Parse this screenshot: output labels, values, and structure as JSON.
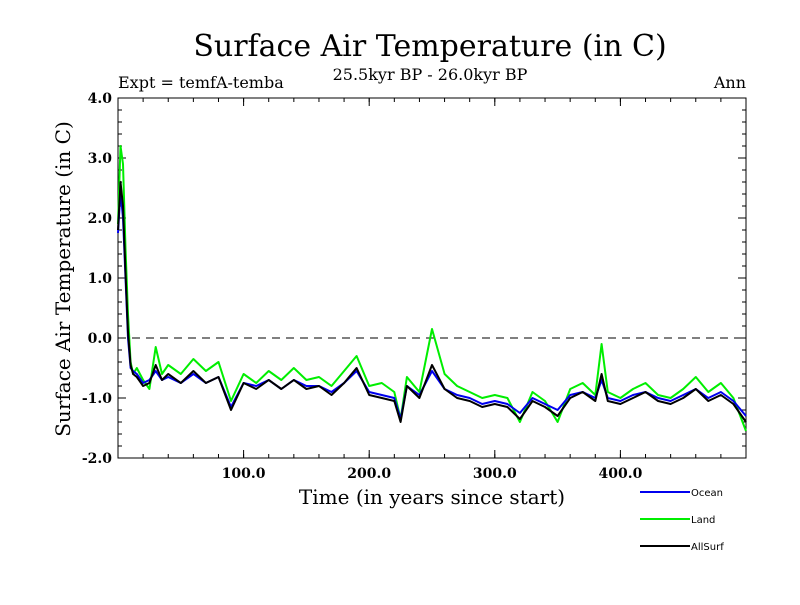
{
  "chart_data": {
    "type": "line",
    "title": "Surface Air Temperature (in C)",
    "subtitle": "25.5kyr BP - 26.0kyr BP",
    "expt_label": "Expt = temfA-temba",
    "season_label": "Ann",
    "xlabel": "Time (in years since start)",
    "ylabel": "Surface Air Temperature (in C)",
    "xlim": [
      0,
      500
    ],
    "ylim": [
      -2.0,
      4.0
    ],
    "xticks": [
      100,
      200,
      300,
      400
    ],
    "xtick_labels": [
      "100.0",
      "200.0",
      "300.0",
      "400.0"
    ],
    "yticks": [
      -2.0,
      -1.0,
      0.0,
      1.0,
      2.0,
      3.0,
      4.0
    ],
    "ytick_labels": [
      "-2.0",
      "-1.0",
      "0.0",
      "1.0",
      "2.0",
      "3.0",
      "4.0"
    ],
    "reference_line": 0.0,
    "series": [
      {
        "name": "Land",
        "color": "#00ee00",
        "x": [
          0,
          2,
          4,
          6,
          8,
          10,
          12,
          15,
          20,
          25,
          30,
          35,
          40,
          50,
          60,
          70,
          80,
          90,
          100,
          110,
          120,
          130,
          140,
          150,
          160,
          170,
          180,
          190,
          200,
          210,
          220,
          225,
          230,
          240,
          250,
          260,
          270,
          280,
          290,
          300,
          310,
          320,
          330,
          340,
          350,
          360,
          370,
          380,
          385,
          390,
          400,
          410,
          420,
          430,
          440,
          450,
          460,
          470,
          480,
          490,
          500
        ],
        "values": [
          1.9,
          3.2,
          2.9,
          1.5,
          0.4,
          -0.4,
          -0.6,
          -0.5,
          -0.7,
          -0.85,
          -0.15,
          -0.6,
          -0.45,
          -0.6,
          -0.35,
          -0.55,
          -0.4,
          -1.05,
          -0.6,
          -0.75,
          -0.55,
          -0.7,
          -0.5,
          -0.7,
          -0.65,
          -0.8,
          -0.55,
          -0.3,
          -0.8,
          -0.75,
          -0.9,
          -1.35,
          -0.65,
          -0.9,
          0.15,
          -0.6,
          -0.8,
          -0.9,
          -1.0,
          -0.95,
          -1.0,
          -1.4,
          -0.9,
          -1.05,
          -1.4,
          -0.85,
          -0.75,
          -0.95,
          -0.1,
          -0.9,
          -1.0,
          -0.85,
          -0.75,
          -0.95,
          -1.0,
          -0.85,
          -0.65,
          -0.9,
          -0.75,
          -1.0,
          -1.55
        ]
      },
      {
        "name": "Ocean",
        "color": "#0000ee",
        "x": [
          0,
          2,
          4,
          6,
          8,
          10,
          12,
          15,
          20,
          25,
          30,
          35,
          40,
          50,
          60,
          70,
          80,
          90,
          100,
          110,
          120,
          130,
          140,
          150,
          160,
          170,
          180,
          190,
          200,
          210,
          220,
          225,
          230,
          240,
          250,
          260,
          270,
          280,
          290,
          300,
          310,
          320,
          330,
          340,
          350,
          360,
          370,
          380,
          385,
          390,
          400,
          410,
          420,
          430,
          440,
          450,
          460,
          470,
          480,
          490,
          500
        ],
        "values": [
          1.75,
          2.45,
          2.0,
          1.0,
          0.0,
          -0.5,
          -0.55,
          -0.6,
          -0.75,
          -0.7,
          -0.55,
          -0.7,
          -0.65,
          -0.75,
          -0.6,
          -0.75,
          -0.65,
          -1.15,
          -0.75,
          -0.8,
          -0.7,
          -0.85,
          -0.7,
          -0.8,
          -0.8,
          -0.9,
          -0.75,
          -0.55,
          -0.9,
          -0.95,
          -1.0,
          -1.35,
          -0.8,
          -0.95,
          -0.55,
          -0.85,
          -0.95,
          -1.0,
          -1.1,
          -1.05,
          -1.1,
          -1.25,
          -1.0,
          -1.1,
          -1.2,
          -0.95,
          -0.9,
          -1.0,
          -0.7,
          -1.0,
          -1.05,
          -0.95,
          -0.9,
          -1.0,
          -1.05,
          -0.95,
          -0.85,
          -1.0,
          -0.9,
          -1.05,
          -1.3
        ]
      },
      {
        "name": "AllSurf",
        "color": "#000000",
        "x": [
          0,
          2,
          4,
          6,
          8,
          10,
          12,
          15,
          20,
          25,
          30,
          35,
          40,
          50,
          60,
          70,
          80,
          90,
          100,
          110,
          120,
          130,
          140,
          150,
          160,
          170,
          180,
          190,
          200,
          210,
          220,
          225,
          230,
          240,
          250,
          260,
          270,
          280,
          290,
          300,
          310,
          320,
          330,
          340,
          350,
          360,
          370,
          380,
          385,
          390,
          400,
          410,
          420,
          430,
          440,
          450,
          460,
          470,
          480,
          490,
          500
        ],
        "values": [
          1.8,
          2.6,
          2.2,
          1.1,
          0.1,
          -0.45,
          -0.6,
          -0.65,
          -0.8,
          -0.75,
          -0.45,
          -0.7,
          -0.6,
          -0.75,
          -0.55,
          -0.75,
          -0.65,
          -1.2,
          -0.75,
          -0.85,
          -0.7,
          -0.85,
          -0.7,
          -0.85,
          -0.8,
          -0.95,
          -0.75,
          -0.5,
          -0.95,
          -1.0,
          -1.05,
          -1.4,
          -0.8,
          -1.0,
          -0.45,
          -0.85,
          -1.0,
          -1.05,
          -1.15,
          -1.1,
          -1.15,
          -1.35,
          -1.05,
          -1.15,
          -1.3,
          -1.0,
          -0.9,
          -1.05,
          -0.6,
          -1.05,
          -1.1,
          -1.0,
          -0.9,
          -1.05,
          -1.1,
          -1.0,
          -0.85,
          -1.05,
          -0.95,
          -1.1,
          -1.4
        ]
      }
    ],
    "legend": [
      {
        "name": "Ocean",
        "color": "#0000ee"
      },
      {
        "name": "Land",
        "color": "#00ee00"
      },
      {
        "name": "AllSurf",
        "color": "#000000"
      }
    ]
  }
}
